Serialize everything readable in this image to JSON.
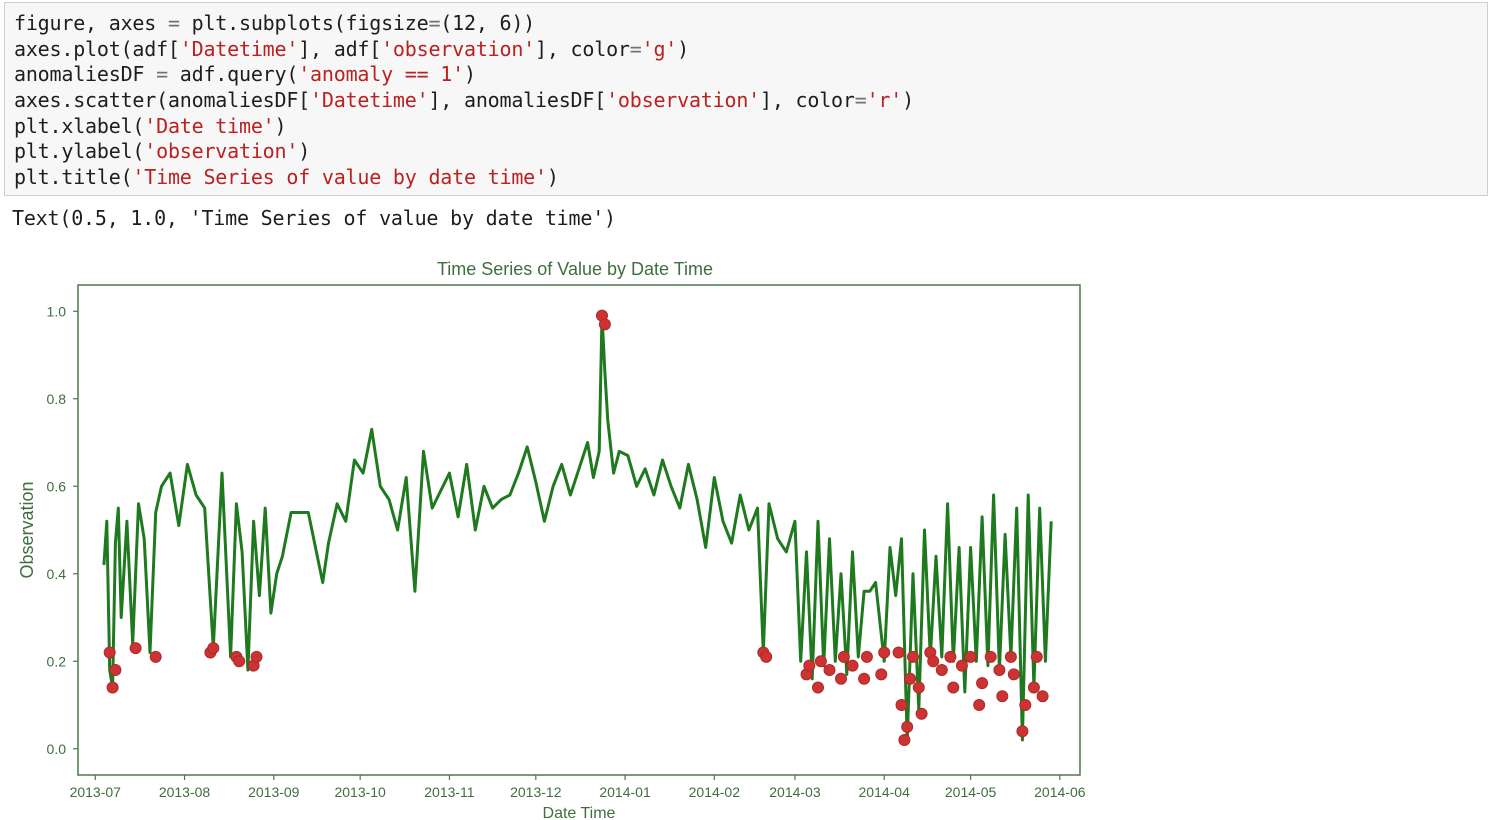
{
  "code_cell": {
    "lines": [
      {
        "parts": [
          [
            "figure, axes ",
            ""
          ],
          [
            "=",
            "op"
          ],
          [
            " plt.subplots(figsize",
            ""
          ],
          [
            "=",
            "op"
          ],
          [
            "(12, 6))",
            ""
          ]
        ]
      },
      {
        "parts": [
          [
            "axes.plot(adf[",
            ""
          ],
          [
            "'Datetime'",
            "str"
          ],
          [
            "], adf[",
            ""
          ],
          [
            "'observation'",
            "str"
          ],
          [
            "], color",
            ""
          ],
          [
            "=",
            "op"
          ],
          [
            "'g'",
            "str"
          ],
          [
            ")",
            ""
          ]
        ]
      },
      {
        "parts": [
          [
            "anomaliesDF ",
            ""
          ],
          [
            "=",
            "op"
          ],
          [
            " adf.query(",
            ""
          ],
          [
            "'anomaly == 1'",
            "str"
          ],
          [
            ")",
            ""
          ]
        ]
      },
      {
        "parts": [
          [
            "axes.scatter(anomaliesDF[",
            ""
          ],
          [
            "'Datetime'",
            "str"
          ],
          [
            "], anomaliesDF[",
            ""
          ],
          [
            "'observation'",
            "str"
          ],
          [
            "], color",
            ""
          ],
          [
            "=",
            "op"
          ],
          [
            "'r'",
            "str"
          ],
          [
            ")",
            ""
          ]
        ]
      },
      {
        "parts": [
          [
            "plt.xlabel(",
            ""
          ],
          [
            "'Date time'",
            "str"
          ],
          [
            ")",
            ""
          ]
        ]
      },
      {
        "parts": [
          [
            "plt.ylabel(",
            ""
          ],
          [
            "'observation'",
            "str"
          ],
          [
            ")",
            ""
          ]
        ]
      },
      {
        "parts": [
          [
            "plt.title(",
            ""
          ],
          [
            "'Time Series of value by date time'",
            "str"
          ],
          [
            ")",
            ""
          ]
        ]
      }
    ]
  },
  "output_text": "Text(0.5, 1.0, 'Time Series of value by date time')",
  "colors": {
    "line": "#1f7a1f",
    "anomaly": "#cc3333",
    "text": "#3f6e3f",
    "axes_frame": "#4a7a4a"
  },
  "chart_data": {
    "type": "line",
    "title": "Time Series of Value by Date Time",
    "xlabel": "Date Time",
    "ylabel": "Observation",
    "ylim": [
      -0.06,
      1.06
    ],
    "xlim": [
      "2013-06-25",
      "2014-06-08"
    ],
    "grid": false,
    "y_ticks": [
      0.0,
      0.2,
      0.4,
      0.6,
      0.8,
      1.0
    ],
    "y_tick_labels": [
      "0.0",
      "0.2",
      "0.4",
      "0.6",
      "0.8",
      "1.0"
    ],
    "x_ticks": [
      "2013-07-01",
      "2013-08-01",
      "2013-09-01",
      "2013-10-01",
      "2013-11-01",
      "2013-12-01",
      "2014-01-01",
      "2014-02-01",
      "2014-03-01",
      "2014-04-01",
      "2014-05-01",
      "2014-06-01"
    ],
    "x_tick_labels": [
      "2013-07",
      "2013-08",
      "2013-09",
      "2013-10",
      "2013-11",
      "2013-12",
      "2014-01",
      "2014-02",
      "2014-03",
      "2014-04",
      "2014-05",
      "2014-06"
    ],
    "series": [
      {
        "color": "g",
        "x": [
          "2013-07-04",
          "2013-07-05",
          "2013-07-06",
          "2013-07-07",
          "2013-07-08",
          "2013-07-09",
          "2013-07-10",
          "2013-07-12",
          "2013-07-14",
          "2013-07-16",
          "2013-07-18",
          "2013-07-20",
          "2013-07-22",
          "2013-07-24",
          "2013-07-27",
          "2013-07-30",
          "2013-08-02",
          "2013-08-05",
          "2013-08-08",
          "2013-08-11",
          "2013-08-14",
          "2013-08-17",
          "2013-08-19",
          "2013-08-21",
          "2013-08-23",
          "2013-08-25",
          "2013-08-27",
          "2013-08-29",
          "2013-08-31",
          "2013-09-02",
          "2013-09-04",
          "2013-09-07",
          "2013-09-10",
          "2013-09-13",
          "2013-09-18",
          "2013-09-20",
          "2013-09-23",
          "2013-09-26",
          "2013-09-29",
          "2013-10-02",
          "2013-10-05",
          "2013-10-08",
          "2013-10-11",
          "2013-10-14",
          "2013-10-17",
          "2013-10-20",
          "2013-10-23",
          "2013-10-26",
          "2013-10-29",
          "2013-11-01",
          "2013-11-04",
          "2013-11-07",
          "2013-11-10",
          "2013-11-13",
          "2013-11-16",
          "2013-11-19",
          "2013-11-22",
          "2013-11-25",
          "2013-11-28",
          "2013-12-01",
          "2013-12-04",
          "2013-12-07",
          "2013-12-10",
          "2013-12-13",
          "2013-12-16",
          "2013-12-19",
          "2013-12-21",
          "2013-12-23",
          "2013-12-24",
          "2013-12-25",
          "2013-12-26",
          "2013-12-28",
          "2013-12-30",
          "2014-01-02",
          "2014-01-05",
          "2014-01-08",
          "2014-01-11",
          "2014-01-14",
          "2014-01-17",
          "2014-01-20",
          "2014-01-23",
          "2014-01-26",
          "2014-01-29",
          "2014-02-01",
          "2014-02-04",
          "2014-02-07",
          "2014-02-10",
          "2014-02-13",
          "2014-02-16",
          "2014-02-18",
          "2014-02-20",
          "2014-02-23",
          "2014-02-26",
          "2014-03-01",
          "2014-03-03",
          "2014-03-05",
          "2014-03-07",
          "2014-03-09",
          "2014-03-11",
          "2014-03-13",
          "2014-03-15",
          "2014-03-17",
          "2014-03-19",
          "2014-03-21",
          "2014-03-23",
          "2014-03-25",
          "2014-03-27",
          "2014-03-29",
          "2014-04-01",
          "2014-04-03",
          "2014-04-05",
          "2014-04-07",
          "2014-04-09",
          "2014-04-11",
          "2014-04-13",
          "2014-04-15",
          "2014-04-17",
          "2014-04-19",
          "2014-04-21",
          "2014-04-23",
          "2014-04-25",
          "2014-04-27",
          "2014-04-29",
          "2014-05-01",
          "2014-05-03",
          "2014-05-05",
          "2014-05-07",
          "2014-05-09",
          "2014-05-11",
          "2014-05-13",
          "2014-05-15",
          "2014-05-17",
          "2014-05-19",
          "2014-05-21",
          "2014-05-23",
          "2014-05-25",
          "2014-05-27",
          "2014-05-29"
        ],
        "y": [
          0.42,
          0.52,
          0.18,
          0.14,
          0.47,
          0.55,
          0.3,
          0.52,
          0.24,
          0.56,
          0.48,
          0.22,
          0.54,
          0.6,
          0.63,
          0.51,
          0.65,
          0.58,
          0.55,
          0.23,
          0.63,
          0.21,
          0.56,
          0.45,
          0.18,
          0.52,
          0.35,
          0.55,
          0.31,
          0.4,
          0.44,
          0.54,
          0.54,
          0.54,
          0.38,
          0.47,
          0.56,
          0.52,
          0.66,
          0.63,
          0.73,
          0.6,
          0.57,
          0.5,
          0.62,
          0.36,
          0.68,
          0.55,
          0.59,
          0.63,
          0.53,
          0.65,
          0.5,
          0.6,
          0.55,
          0.57,
          0.58,
          0.63,
          0.69,
          0.61,
          0.52,
          0.6,
          0.65,
          0.58,
          0.64,
          0.7,
          0.62,
          0.68,
          0.99,
          0.86,
          0.75,
          0.63,
          0.68,
          0.67,
          0.6,
          0.64,
          0.58,
          0.66,
          0.6,
          0.55,
          0.65,
          0.57,
          0.46,
          0.62,
          0.52,
          0.47,
          0.58,
          0.5,
          0.55,
          0.22,
          0.56,
          0.48,
          0.45,
          0.52,
          0.2,
          0.45,
          0.16,
          0.52,
          0.19,
          0.48,
          0.2,
          0.4,
          0.17,
          0.45,
          0.21,
          0.36,
          0.36,
          0.38,
          0.2,
          0.46,
          0.35,
          0.48,
          0.02,
          0.4,
          0.09,
          0.5,
          0.21,
          0.44,
          0.21,
          0.56,
          0.2,
          0.46,
          0.13,
          0.46,
          0.2,
          0.53,
          0.19,
          0.58,
          0.18,
          0.49,
          0.21,
          0.55,
          0.02,
          0.58,
          0.14,
          0.55,
          0.2,
          0.52
        ]
      }
    ],
    "anomalies": {
      "color": "r",
      "x": [
        "2013-07-06",
        "2013-07-07",
        "2013-07-08",
        "2013-07-15",
        "2013-07-22",
        "2013-08-10",
        "2013-08-11",
        "2013-08-19",
        "2013-08-20",
        "2013-08-25",
        "2013-08-26",
        "2013-12-24",
        "2013-12-25",
        "2014-02-18",
        "2014-02-19",
        "2014-03-05",
        "2014-03-06",
        "2014-03-09",
        "2014-03-10",
        "2014-03-13",
        "2014-03-17",
        "2014-03-18",
        "2014-03-21",
        "2014-03-25",
        "2014-03-26",
        "2014-03-31",
        "2014-04-01",
        "2014-04-06",
        "2014-04-07",
        "2014-04-08",
        "2014-04-09",
        "2014-04-10",
        "2014-04-11",
        "2014-04-13",
        "2014-04-14",
        "2014-04-17",
        "2014-04-18",
        "2014-04-21",
        "2014-04-24",
        "2014-04-25",
        "2014-04-28",
        "2014-05-01",
        "2014-05-04",
        "2014-05-05",
        "2014-05-08",
        "2014-05-11",
        "2014-05-12",
        "2014-05-15",
        "2014-05-16",
        "2014-05-19",
        "2014-05-20",
        "2014-05-23",
        "2014-05-24",
        "2014-05-26"
      ],
      "y": [
        0.22,
        0.14,
        0.18,
        0.23,
        0.21,
        0.22,
        0.23,
        0.21,
        0.2,
        0.19,
        0.21,
        0.99,
        0.97,
        0.22,
        0.21,
        0.17,
        0.19,
        0.14,
        0.2,
        0.18,
        0.16,
        0.21,
        0.19,
        0.16,
        0.21,
        0.17,
        0.22,
        0.22,
        0.1,
        0.02,
        0.05,
        0.16,
        0.21,
        0.14,
        0.08,
        0.22,
        0.2,
        0.18,
        0.21,
        0.14,
        0.19,
        0.21,
        0.1,
        0.15,
        0.21,
        0.18,
        0.12,
        0.21,
        0.17,
        0.04,
        0.1,
        0.14,
        0.21,
        0.12
      ]
    }
  }
}
